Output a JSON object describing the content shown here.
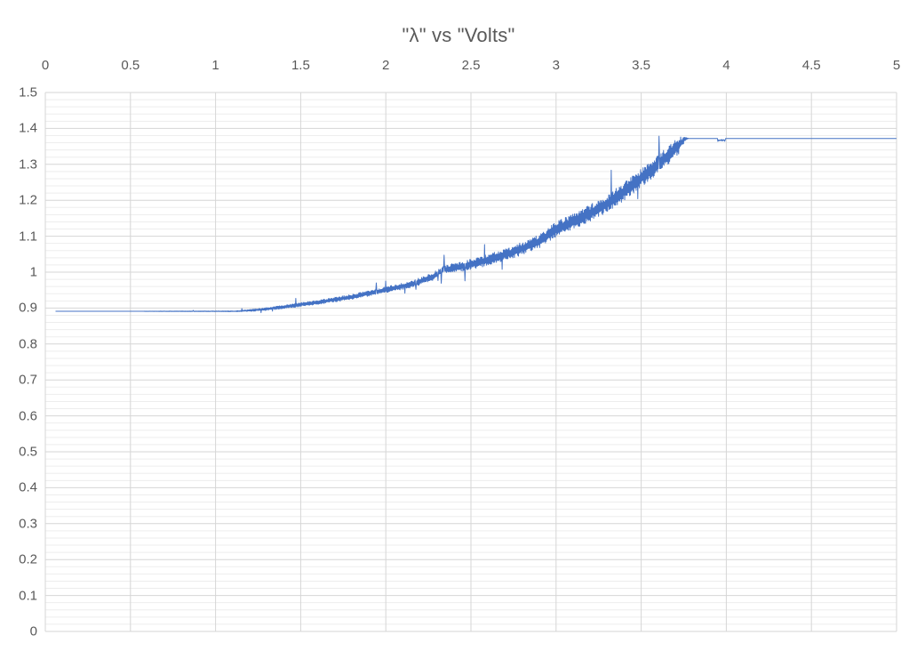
{
  "chart_data": {
    "type": "line",
    "title": "\"λ\" vs \"Volts\"",
    "title_color": "#595959",
    "background": "#FFFFFF",
    "legend": "none",
    "x_axis": {
      "min": 0,
      "max": 5,
      "major_tick": 0.5,
      "label_position": "top",
      "text_color": "#595959",
      "tick_labels": [
        "0",
        "0.5",
        "1",
        "1.5",
        "2",
        "2.5",
        "3",
        "3.5",
        "4",
        "4.5",
        "5"
      ]
    },
    "y_axis": {
      "min": 0,
      "max": 1.5,
      "major_tick": 0.1,
      "minor_tick": 0.02,
      "text_color": "#595959",
      "tick_labels": [
        "1.5",
        "1.4",
        "1.3",
        "1.2",
        "1.1",
        "1",
        "0.9",
        "0.8",
        "0.7",
        "0.6",
        "0.5",
        "0.4",
        "0.3",
        "0.2",
        "0.1",
        "0"
      ]
    },
    "grid": {
      "horizontal_major_color": "#D6D6D6",
      "horizontal_minor_color": "#EDEDED",
      "vertical_major_color": "#D6D6D6",
      "vertical_minor": false
    },
    "series": [
      {
        "name": "λ",
        "color": "#4472C4",
        "stroke_width": 1,
        "x_start": 0.06,
        "x_end": 5,
        "flat_start_value": 0.891,
        "flat_end_value": 1.372,
        "noise_start_x": 1.12,
        "noise_end_x": 3.76,
        "baseline_points": [
          [
            0.06,
            0.891
          ],
          [
            1.12,
            0.891
          ],
          [
            1.25,
            0.895
          ],
          [
            1.4,
            0.903
          ],
          [
            1.6,
            0.916
          ],
          [
            1.8,
            0.931
          ],
          [
            2.0,
            0.951
          ],
          [
            2.15,
            0.966
          ],
          [
            2.28,
            0.988
          ],
          [
            2.33,
            1.006
          ],
          [
            2.45,
            1.016
          ],
          [
            2.6,
            1.034
          ],
          [
            2.75,
            1.056
          ],
          [
            2.9,
            1.085
          ],
          [
            3.0,
            1.12
          ],
          [
            3.1,
            1.14
          ],
          [
            3.2,
            1.165
          ],
          [
            3.3,
            1.19
          ],
          [
            3.4,
            1.225
          ],
          [
            3.5,
            1.262
          ],
          [
            3.6,
            1.3
          ],
          [
            3.68,
            1.335
          ],
          [
            3.74,
            1.362
          ],
          [
            3.76,
            1.372
          ],
          [
            5,
            1.372
          ]
        ],
        "noise_half_band": [
          [
            0.06,
            0
          ],
          [
            1.1,
            0.001
          ],
          [
            1.3,
            0.004
          ],
          [
            1.6,
            0.006
          ],
          [
            2.0,
            0.008
          ],
          [
            2.3,
            0.011
          ],
          [
            2.45,
            0.014
          ],
          [
            2.8,
            0.018
          ],
          [
            3.0,
            0.021
          ],
          [
            3.3,
            0.024
          ],
          [
            3.55,
            0.027
          ],
          [
            3.72,
            0.024
          ],
          [
            3.755,
            0.006
          ],
          [
            3.78,
            0
          ],
          [
            5,
            0
          ]
        ],
        "notch": {
          "x_start": 3.95,
          "x_end": 3.995,
          "depth": 0.009
        },
        "sample_step": 0.0024,
        "seed": 1337
      }
    ]
  }
}
